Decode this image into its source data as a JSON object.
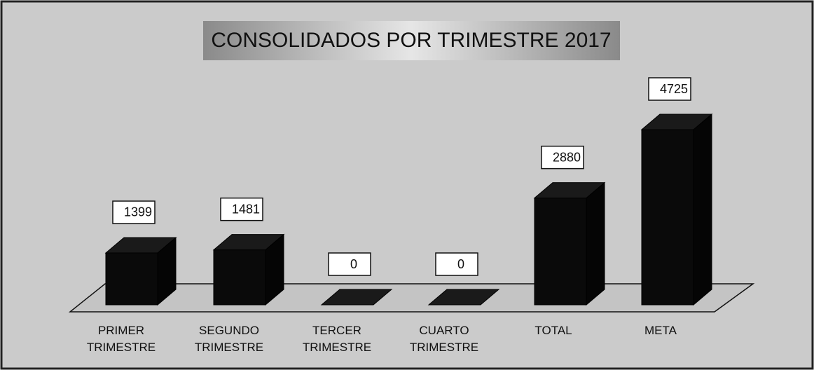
{
  "chart_data": {
    "type": "bar3d",
    "title": "CONSOLIDADOS POR TRIMESTRE 2017",
    "categories": [
      "PRIMER TRIMESTRE",
      "SEGUNDO TRIMESTRE",
      "TERCER TRIMESTRE",
      "CUARTO TRIMESTRE",
      "TOTAL",
      "META"
    ],
    "values": [
      1399,
      1481,
      0,
      0,
      2880,
      4725
    ],
    "color": "#0a0a0a"
  }
}
